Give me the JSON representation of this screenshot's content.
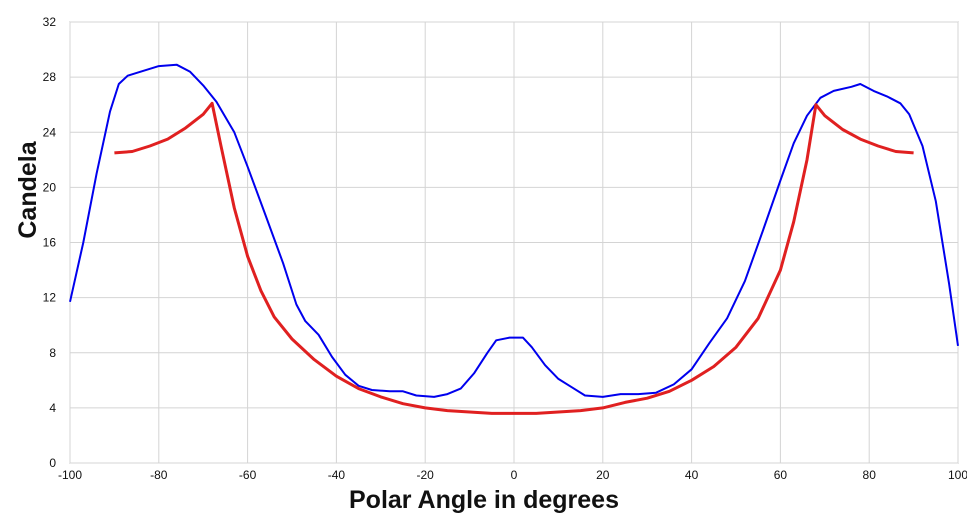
{
  "chart_data": {
    "type": "line",
    "x_label": "Polar Angle in degrees",
    "y_label": "Candela",
    "xlim": [
      -100,
      100
    ],
    "xticks": [
      -100,
      -80,
      -60,
      -40,
      -20,
      0,
      20,
      40,
      60,
      80,
      100
    ],
    "ylim": [
      0,
      32
    ],
    "yticks": [
      0,
      4,
      8,
      12,
      16,
      20,
      24,
      28,
      32
    ],
    "grid": true,
    "series": [
      {
        "color": "#0000ee",
        "x": [
          -100,
          -97,
          -94,
          -91,
          -89,
          -87,
          -84,
          -80,
          -76,
          -73,
          -70,
          -67,
          -63,
          -60,
          -56,
          -52,
          -49,
          -47,
          -44,
          -41,
          -38,
          -35,
          -32,
          -28,
          -25,
          -22,
          -18,
          -15,
          -12,
          -9,
          -6,
          -4,
          -1,
          2,
          4,
          7,
          10,
          13,
          16,
          20,
          24,
          28,
          32,
          36,
          40,
          44,
          48,
          52,
          56,
          60,
          63,
          66,
          69,
          72,
          76,
          78,
          81,
          84,
          87,
          89,
          92,
          95,
          98,
          100
        ],
        "values": [
          11.7,
          16,
          21,
          25.5,
          27.5,
          28.1,
          28.4,
          28.8,
          28.9,
          28.4,
          27.4,
          26.2,
          24,
          21.5,
          18,
          14.5,
          11.5,
          10.3,
          9.3,
          7.7,
          6.4,
          5.6,
          5.3,
          5.2,
          5.2,
          4.9,
          4.8,
          5,
          5.4,
          6.5,
          8,
          8.9,
          9.1,
          9.1,
          8.4,
          7.1,
          6.1,
          5.5,
          4.9,
          4.8,
          5,
          5,
          5.1,
          5.7,
          6.8,
          8.7,
          10.5,
          13.2,
          16.8,
          20.5,
          23.2,
          25.2,
          26.5,
          27,
          27.3,
          27.5,
          27,
          26.6,
          26.1,
          25.3,
          23,
          19,
          13,
          8.5
        ]
      },
      {
        "color": "#e02020",
        "x": [
          -90,
          -86,
          -82,
          -78,
          -74,
          -70,
          -68,
          -66,
          -63,
          -60,
          -57,
          -54,
          -50,
          -45,
          -40,
          -35,
          -30,
          -25,
          -20,
          -15,
          -10,
          -5,
          0,
          5,
          10,
          15,
          20,
          25,
          30,
          35,
          40,
          45,
          50,
          55,
          60,
          63,
          66,
          68,
          70,
          74,
          78,
          82,
          86,
          90
        ],
        "values": [
          22.5,
          22.6,
          23,
          23.5,
          24.3,
          25.3,
          26.1,
          23,
          18.5,
          15,
          12.5,
          10.6,
          9,
          7.5,
          6.3,
          5.4,
          4.8,
          4.3,
          4,
          3.8,
          3.7,
          3.6,
          3.6,
          3.6,
          3.7,
          3.8,
          4,
          4.4,
          4.7,
          5.2,
          6,
          7,
          8.4,
          10.5,
          14,
          17.5,
          22,
          26,
          25.2,
          24.2,
          23.5,
          23,
          22.6,
          22.5
        ]
      }
    ]
  }
}
